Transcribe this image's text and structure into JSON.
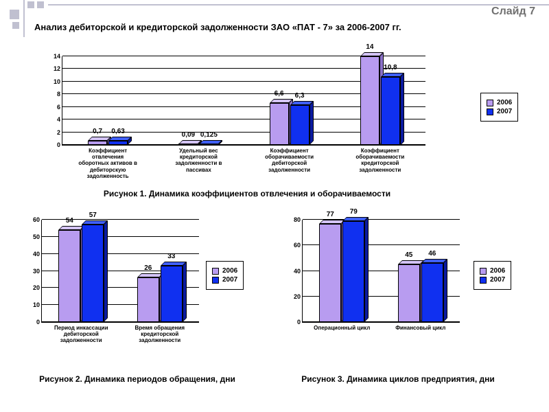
{
  "slide_label": "Слайд 7",
  "title": "Анализ дебиторской и кредиторской задолженности ЗАО «ПАТ - 7» за 2006-2007 гг.",
  "colors": {
    "series_2006": "#b89cf0",
    "series_2006_top": "#d4c4f8",
    "series_2006_side": "#8a70c8",
    "series_2007": "#1030f0",
    "series_2007_top": "#4060ff",
    "series_2007_side": "#0a1aa0",
    "grid": "#000000",
    "deco": "#c0c0d0"
  },
  "legend_labels": {
    "s1": "2006",
    "s2": "2007"
  },
  "chart1": {
    "type": "bar",
    "ylim": [
      0,
      14
    ],
    "ytick_step": 2,
    "categories": [
      "Коэффициент\nотвлечения\nоборотных активов в\nдебиторскую\nзадолженность",
      "Удельный вес\nкредиторской\nзадолженности в\nпассивах",
      "Коэффициент\nоборачиваемости\nдебиторской\nзадолженности",
      "Коэффициент\nоборачиваемости\nкредиторской\nзадолженности"
    ],
    "series_2006": [
      0.7,
      0.09,
      6.6,
      14
    ],
    "series_2007": [
      0.63,
      0.125,
      6.3,
      10.8
    ],
    "labels_2006": [
      "0,7",
      "0,09",
      "6,6",
      "14"
    ],
    "labels_2007": [
      "0,63",
      "0,125",
      "6,3",
      "10,8"
    ],
    "caption": "Рисунок 1. Динамика коэффициентов отвлечения и оборачиваемости"
  },
  "chart2": {
    "type": "bar",
    "ylim": [
      0,
      60
    ],
    "ytick_step": 10,
    "categories": [
      "Период инкассации\nдебиторской\nзадолженности",
      "Время обращения\nкредиторской\nзадолженности"
    ],
    "series_2006": [
      54,
      26
    ],
    "series_2007": [
      57,
      33
    ],
    "labels_2006": [
      "54",
      "26"
    ],
    "labels_2007": [
      "57",
      "33"
    ],
    "caption": "Рисунок 2. Динамика периодов обращения, дни"
  },
  "chart3": {
    "type": "bar",
    "ylim": [
      0,
      80
    ],
    "ytick_step": 20,
    "categories": [
      "Операционный цикл",
      "Финансовый цикл"
    ],
    "series_2006": [
      77,
      45
    ],
    "series_2007": [
      79,
      46
    ],
    "labels_2006": [
      "77",
      "45"
    ],
    "labels_2007": [
      "79",
      "46"
    ],
    "caption": "Рисунок 3. Динамика циклов предприятия, дни"
  }
}
